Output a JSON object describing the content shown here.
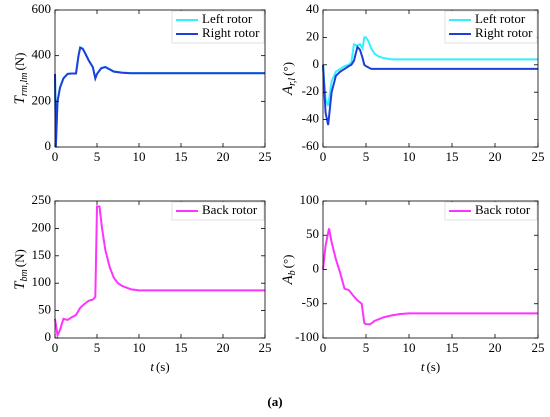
{
  "chart_data": [
    {
      "type": "line",
      "ylabel": {
        "symbol": "T",
        "subscript": "rm,lm",
        "unit": "(N)"
      },
      "xlim": [
        0,
        25
      ],
      "xticks": [
        0,
        5,
        10,
        15,
        20,
        25
      ],
      "ylim": [
        0,
        600
      ],
      "yticks": [
        0,
        200,
        400,
        600
      ],
      "legend": "upper right",
      "series": [
        {
          "name": "Left rotor",
          "color": "#33f0ff",
          "x": [
            0,
            0.1,
            0.3,
            0.6,
            1,
            1.5,
            2,
            2.5,
            2.8,
            3,
            3.3,
            3.6,
            4,
            4.5,
            4.8,
            5,
            5.5,
            6,
            6.5,
            7,
            8,
            9,
            10,
            12,
            15,
            20,
            25
          ],
          "values": [
            320,
            0,
            205,
            262,
            302,
            321,
            322,
            322,
            402,
            437,
            431,
            411,
            381,
            351,
            302,
            321,
            346,
            351,
            341,
            331,
            326,
            324,
            324,
            324,
            324,
            324,
            324
          ]
        },
        {
          "name": "Right rotor",
          "color": "#1f3fd8",
          "x": [
            0,
            0.1,
            0.3,
            0.6,
            1,
            1.5,
            2,
            2.5,
            2.8,
            3,
            3.3,
            3.6,
            4,
            4.5,
            4.8,
            5,
            5.5,
            6,
            6.5,
            7,
            8,
            9,
            10,
            12,
            15,
            20,
            25
          ],
          "values": [
            320,
            0,
            200,
            260,
            300,
            320,
            322,
            322,
            400,
            435,
            430,
            410,
            380,
            350,
            300,
            320,
            345,
            350,
            340,
            330,
            325,
            323,
            323,
            323,
            323,
            323,
            323
          ]
        }
      ]
    },
    {
      "type": "line",
      "ylabel": {
        "symbol": "A",
        "subscript": "r,l",
        "unit": "(°)"
      },
      "xlim": [
        0,
        25
      ],
      "xticks": [
        0,
        5,
        10,
        15,
        20,
        25
      ],
      "ylim": [
        -60,
        40
      ],
      "yticks": [
        -60,
        -40,
        -20,
        0,
        20,
        40
      ],
      "legend": "upper right",
      "series": [
        {
          "name": "Left rotor",
          "color": "#33f0ff",
          "x": [
            0,
            0.3,
            0.6,
            1,
            1.5,
            2,
            2.5,
            3,
            3.3,
            3.6,
            4,
            4.3,
            4.6,
            4.8,
            5,
            5.3,
            5.6,
            6,
            6.5,
            7,
            8,
            9,
            10,
            12,
            15,
            20,
            25
          ],
          "values": [
            0,
            -25,
            -30,
            -12,
            -5,
            -3,
            -1,
            0,
            2,
            15,
            14,
            15,
            12,
            20,
            20,
            17,
            12,
            8,
            6,
            5,
            4,
            4,
            4,
            4,
            4,
            4,
            4
          ]
        },
        {
          "name": "Right rotor",
          "color": "#1f3fd8",
          "x": [
            0,
            0.3,
            0.6,
            1,
            1.5,
            2,
            2.5,
            3,
            3.3,
            3.6,
            4,
            4.3,
            4.6,
            4.8,
            5,
            5.3,
            5.6,
            6,
            6.5,
            7,
            8,
            9,
            10,
            12,
            15,
            20,
            25
          ],
          "values": [
            0,
            -35,
            -44,
            -20,
            -8,
            -5,
            -3,
            -1,
            0,
            3,
            13,
            11,
            5,
            0,
            -1,
            -2,
            -3,
            -3,
            -3,
            -3,
            -3,
            -3,
            -3,
            -3,
            -3,
            -3,
            -3
          ]
        }
      ]
    },
    {
      "type": "line",
      "ylabel": {
        "symbol": "T",
        "subscript": "bm",
        "unit": "(N)"
      },
      "xlabel": {
        "symbol": "t",
        "unit": "(s)"
      },
      "xlim": [
        0,
        25
      ],
      "xticks": [
        0,
        5,
        10,
        15,
        20,
        25
      ],
      "ylim": [
        0,
        250
      ],
      "yticks": [
        0,
        50,
        100,
        150,
        200,
        250
      ],
      "legend": "upper right",
      "series": [
        {
          "name": "Back rotor",
          "color": "#ff33ff",
          "x": [
            0,
            0.3,
            0.6,
            1,
            1.5,
            2,
            2.5,
            3,
            3.5,
            4,
            4.5,
            4.8,
            5,
            5.3,
            5.6,
            6,
            6.5,
            7,
            7.5,
            8,
            9,
            10,
            12,
            15,
            20,
            25
          ],
          "values": [
            35,
            5,
            15,
            35,
            33,
            38,
            42,
            55,
            62,
            68,
            70,
            75,
            240,
            240,
            200,
            160,
            130,
            110,
            100,
            95,
            89,
            87,
            87,
            87,
            87,
            87
          ]
        }
      ]
    },
    {
      "type": "line",
      "ylabel": {
        "symbol": "A",
        "subscript": "b",
        "unit": "(°)"
      },
      "xlabel": {
        "symbol": "t",
        "unit": "(s)"
      },
      "xlim": [
        0,
        25
      ],
      "xticks": [
        0,
        5,
        10,
        15,
        20,
        25
      ],
      "ylim": [
        -100,
        100
      ],
      "yticks": [
        -100,
        -50,
        0,
        50,
        100
      ],
      "legend": "upper right",
      "series": [
        {
          "name": "Back rotor",
          "color": "#ff33ff",
          "x": [
            0,
            0.3,
            0.7,
            1,
            1.5,
            2,
            2.5,
            3,
            3.5,
            4,
            4.5,
            4.8,
            5,
            5.5,
            6,
            7,
            8,
            9,
            10,
            12,
            15,
            20,
            25
          ],
          "values": [
            0,
            35,
            60,
            40,
            15,
            -5,
            -28,
            -30,
            -38,
            -45,
            -50,
            -78,
            -80,
            -80,
            -75,
            -70,
            -67,
            -65,
            -64,
            -64,
            -64,
            -64,
            -64
          ]
        }
      ]
    }
  ],
  "caption": "(a)"
}
